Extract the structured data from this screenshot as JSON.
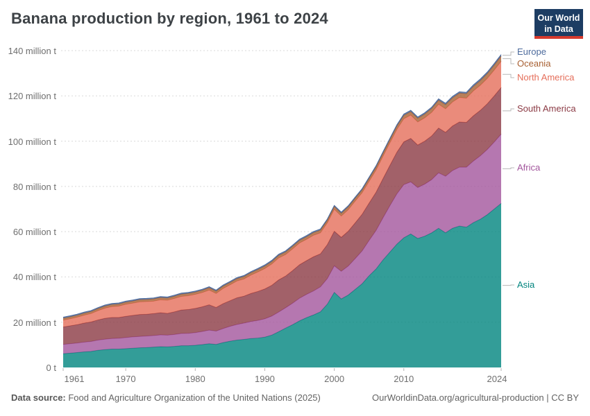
{
  "header": {
    "title": "Banana production by region, 1961 to 2024",
    "logo": {
      "line1": "Our World",
      "line2": "in Data",
      "bg_color": "#1d3d63",
      "bar_color": "#d73a2d"
    }
  },
  "footer": {
    "source_label": "Data source:",
    "source_value": " Food and Agriculture Organization of the United Nations (2025)",
    "url": "OurWorldinData.org/agricultural-production",
    "separator": " | ",
    "license": "CC BY"
  },
  "axis": {
    "y_tick_values": [
      0,
      20,
      40,
      60,
      80,
      100,
      120,
      140
    ],
    "y_tick_labels": [
      "0 t",
      "20 million t",
      "40 million t",
      "60 million t",
      "80 million t",
      "100 million t",
      "120 million t",
      "140 million t"
    ],
    "x_tick_years": [
      1961,
      1970,
      1980,
      1990,
      2000,
      2010,
      2024
    ],
    "x_tick_labels": [
      "1961",
      "1970",
      "1980",
      "1990",
      "2000",
      "2010",
      "2024"
    ],
    "tick_color": "#b3b3b3",
    "grid_color": "#d9d9d9",
    "label_color": "#6e6e6e"
  },
  "chart_data": {
    "type": "area",
    "stacked": true,
    "title": "Banana production by region, 1961 to 2024",
    "unit": "million t",
    "ylim": [
      0,
      140
    ],
    "grid": "dashed",
    "legend_position": "right",
    "legend_order_top_to_bottom": [
      "Europe",
      "Oceania",
      "North America",
      "South America",
      "Africa",
      "Asia"
    ],
    "x": [
      1961,
      1962,
      1963,
      1964,
      1965,
      1966,
      1967,
      1968,
      1969,
      1970,
      1971,
      1972,
      1973,
      1974,
      1975,
      1976,
      1977,
      1978,
      1979,
      1980,
      1981,
      1982,
      1983,
      1984,
      1985,
      1986,
      1987,
      1988,
      1989,
      1990,
      1991,
      1992,
      1993,
      1994,
      1995,
      1996,
      1997,
      1998,
      1999,
      2000,
      2001,
      2002,
      2003,
      2004,
      2005,
      2006,
      2007,
      2008,
      2009,
      2010,
      2011,
      2012,
      2013,
      2014,
      2015,
      2016,
      2017,
      2018,
      2019,
      2020,
      2021,
      2022,
      2023,
      2024
    ],
    "series": [
      {
        "name": "Asia",
        "color": "#00847E",
        "values": [
          6.1,
          6.3,
          6.6,
          6.9,
          7.1,
          7.6,
          7.9,
          8.1,
          8.1,
          8.3,
          8.5,
          8.7,
          8.8,
          9.0,
          9.2,
          9.1,
          9.3,
          9.6,
          9.6,
          9.8,
          10.1,
          10.5,
          10.2,
          11.0,
          11.6,
          12.1,
          12.4,
          12.8,
          13.0,
          13.4,
          14.3,
          15.8,
          17.4,
          18.9,
          20.6,
          22.0,
          23.2,
          24.6,
          28.0,
          33.2,
          30.3,
          32.0,
          34.5,
          37.0,
          40.5,
          43.5,
          47.5,
          51.0,
          54.5,
          57.3,
          59.0,
          57.0,
          58.0,
          59.5,
          61.5,
          59.5,
          61.5,
          62.5,
          62.0,
          64.0,
          65.5,
          67.5,
          70.0,
          72.5
        ]
      },
      {
        "name": "Africa",
        "color": "#A2559C",
        "values": [
          4.1,
          4.2,
          4.2,
          4.3,
          4.4,
          4.5,
          4.6,
          4.7,
          4.8,
          4.9,
          5.0,
          5.0,
          5.1,
          5.1,
          5.2,
          5.2,
          5.3,
          5.4,
          5.5,
          5.6,
          5.8,
          6.0,
          5.9,
          6.2,
          6.6,
          6.9,
          7.2,
          7.5,
          7.8,
          8.1,
          8.4,
          8.7,
          9.0,
          9.5,
          10.0,
          10.3,
          10.6,
          11.0,
          11.3,
          11.7,
          12.2,
          12.8,
          13.6,
          14.5,
          15.6,
          17.0,
          18.6,
          20.5,
          22.2,
          23.5,
          23.0,
          22.5,
          23.0,
          23.5,
          24.5,
          25.0,
          25.5,
          26.0,
          26.5,
          27.2,
          28.0,
          28.8,
          29.6,
          30.6
        ]
      },
      {
        "name": "South America",
        "color": "#8B3A44",
        "values": [
          7.7,
          7.9,
          8.1,
          8.4,
          8.6,
          8.9,
          9.2,
          9.3,
          9.2,
          9.4,
          9.5,
          9.7,
          9.6,
          9.7,
          9.8,
          9.6,
          10.0,
          10.4,
          10.5,
          10.7,
          10.9,
          11.2,
          10.4,
          11.0,
          11.3,
          11.8,
          11.9,
          12.4,
          12.8,
          13.2,
          13.6,
          14.2,
          14.0,
          14.4,
          14.8,
          14.9,
          15.1,
          14.6,
          15.0,
          15.3,
          15.0,
          15.4,
          15.8,
          16.2,
          16.5,
          16.9,
          17.3,
          17.8,
          18.4,
          18.9,
          19.2,
          18.8,
          19.0,
          19.3,
          19.8,
          19.4,
          19.7,
          20.0,
          19.8,
          20.0,
          20.1,
          20.2,
          20.4,
          20.6
        ]
      },
      {
        "name": "North America",
        "color": "#E56E5A",
        "values": [
          3.0,
          3.1,
          3.3,
          3.5,
          3.7,
          4.1,
          4.5,
          4.8,
          5.0,
          5.3,
          5.4,
          5.6,
          5.6,
          5.5,
          5.7,
          5.8,
          5.9,
          6.0,
          6.1,
          6.2,
          6.3,
          6.5,
          6.2,
          6.7,
          7.0,
          7.4,
          7.6,
          8.1,
          8.6,
          9.0,
          9.4,
          9.7,
          9.5,
          9.6,
          9.6,
          9.4,
          9.5,
          9.3,
          9.6,
          9.7,
          9.4,
          9.5,
          9.6,
          9.5,
          9.6,
          9.8,
          9.9,
          10.0,
          10.1,
          10.2,
          10.3,
          10.2,
          10.3,
          10.4,
          10.5,
          10.4,
          10.6,
          10.8,
          10.7,
          11.0,
          11.1,
          11.2,
          11.4,
          11.6
        ]
      },
      {
        "name": "Oceania",
        "color": "#A86032",
        "values": [
          0.85,
          0.86,
          0.87,
          0.88,
          0.89,
          0.9,
          0.91,
          0.92,
          0.94,
          0.95,
          0.95,
          0.96,
          0.97,
          0.98,
          0.98,
          0.99,
          0.99,
          1.0,
          1.0,
          1.0,
          1.01,
          1.02,
          1.03,
          1.04,
          1.05,
          1.06,
          1.07,
          1.08,
          1.09,
          1.1,
          1.11,
          1.12,
          1.13,
          1.14,
          1.15,
          1.16,
          1.17,
          1.18,
          1.19,
          1.2,
          1.22,
          1.24,
          1.26,
          1.28,
          1.3,
          1.34,
          1.38,
          1.42,
          1.46,
          1.5,
          1.56,
          1.62,
          1.68,
          1.74,
          1.8,
          1.84,
          1.88,
          1.92,
          1.96,
          2.0,
          2.08,
          2.15,
          2.22,
          2.3
        ]
      },
      {
        "name": "Europe",
        "color": "#4C6A9C",
        "values": [
          0.45,
          0.45,
          0.45,
          0.45,
          0.45,
          0.45,
          0.45,
          0.45,
          0.45,
          0.45,
          0.45,
          0.45,
          0.45,
          0.45,
          0.45,
          0.45,
          0.45,
          0.45,
          0.45,
          0.45,
          0.45,
          0.45,
          0.45,
          0.45,
          0.45,
          0.45,
          0.45,
          0.45,
          0.45,
          0.5,
          0.5,
          0.5,
          0.5,
          0.5,
          0.5,
          0.5,
          0.5,
          0.5,
          0.5,
          0.5,
          0.5,
          0.5,
          0.5,
          0.5,
          0.55,
          0.55,
          0.55,
          0.55,
          0.55,
          0.55,
          0.55,
          0.55,
          0.55,
          0.55,
          0.6,
          0.6,
          0.6,
          0.6,
          0.6,
          0.65,
          0.65,
          0.65,
          0.65,
          0.65
        ]
      }
    ]
  }
}
